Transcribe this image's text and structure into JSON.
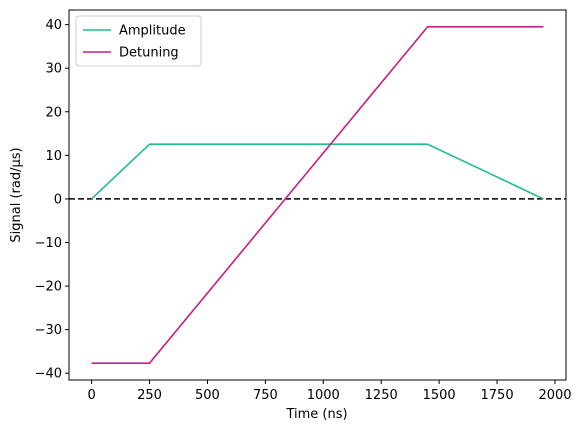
{
  "chart_data": {
    "type": "line",
    "x_label": "Time (ns)",
    "y_label": "Signal (rad/µs)",
    "series": [
      {
        "name": "Amplitude",
        "color": "#1fbf85",
        "x": [
          0,
          250,
          1450,
          1950
        ],
        "values": [
          0,
          12.57,
          12.57,
          0
        ]
      },
      {
        "name": "Detuning",
        "color": "#c71f84",
        "x": [
          0,
          250,
          1450,
          1950
        ],
        "values": [
          -37.7,
          -37.7,
          39.5,
          39.5
        ]
      }
    ],
    "reference_line": 0,
    "xlim": [
      -97.5,
      2047.5
    ],
    "ylim": [
      -41.56,
      43.36
    ],
    "xticks": [
      0,
      250,
      500,
      750,
      1000,
      1250,
      1500,
      1750,
      2000
    ],
    "yticks": [
      {
        "value": -40,
        "label": "−40"
      },
      {
        "value": -30,
        "label": "−30"
      },
      {
        "value": -20,
        "label": "−20"
      },
      {
        "value": -10,
        "label": "−10"
      },
      0,
      10,
      20,
      30,
      40
    ],
    "legend": "upper left"
  }
}
